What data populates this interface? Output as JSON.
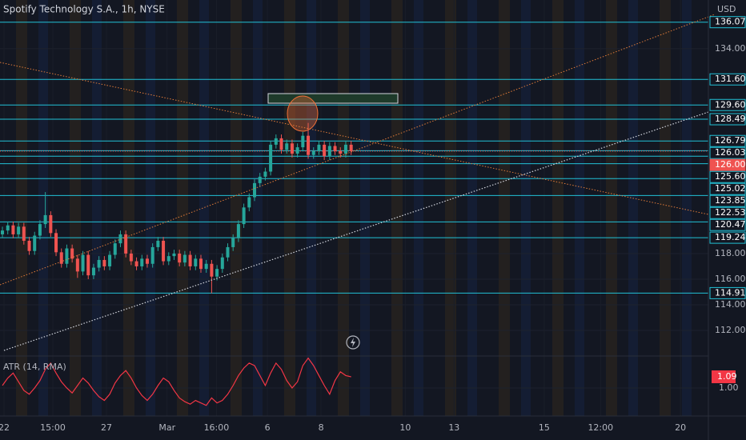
{
  "chart_data": {
    "type": "candlestick",
    "title": "Spotify Technology S.A., 1h, NYSE",
    "currency": "USD",
    "up_color": "#26a69a",
    "down_color": "#ef5350",
    "level_color": "#22c1d6",
    "ylim": [
      110,
      137.8
    ],
    "yticks": [
      {
        "value": 112,
        "label": "112.00"
      },
      {
        "value": 114,
        "label": "114.00"
      },
      {
        "value": 116,
        "label": "116.00"
      },
      {
        "value": 118,
        "label": "118.00"
      },
      {
        "value": 134,
        "label": "134.00"
      }
    ],
    "levels": [
      {
        "value": 136.07,
        "label": "136.07"
      },
      {
        "value": 131.6,
        "label": "131.60"
      },
      {
        "value": 129.6,
        "label": "129.60"
      },
      {
        "value": 128.49,
        "label": "128.49"
      },
      {
        "value": 126.79,
        "label": "126.79"
      },
      {
        "value": 126.03,
        "label": "126.03"
      },
      {
        "value": 125.6,
        "label": "125.60"
      },
      {
        "value": 125.02,
        "label": "125.02"
      },
      {
        "value": 123.85,
        "label": "123.85"
      },
      {
        "value": 122.53,
        "label": "122.53"
      },
      {
        "value": 120.47,
        "label": "120.47"
      },
      {
        "value": 119.24,
        "label": "119.24"
      },
      {
        "value": 114.91,
        "label": "114.91"
      }
    ],
    "last_price": {
      "value": 126,
      "label": "126.00"
    },
    "xlim": [
      -0.45,
      131.6
    ],
    "xticks": [
      {
        "value": 0.3,
        "label": "22"
      },
      {
        "value": 9.4,
        "label": "15:00"
      },
      {
        "value": 19.4,
        "label": "27"
      },
      {
        "value": 30.7,
        "label": "Mar"
      },
      {
        "value": 39.9,
        "label": "16:00"
      },
      {
        "value": 49.4,
        "label": "6"
      },
      {
        "value": 59.4,
        "label": "8"
      },
      {
        "value": 75.1,
        "label": "10"
      },
      {
        "value": 84.2,
        "label": "13"
      },
      {
        "value": 101.0,
        "label": "15"
      },
      {
        "value": 111.5,
        "label": "12:00"
      },
      {
        "value": 126.4,
        "label": "20"
      }
    ],
    "candles": [
      [
        119.5,
        120.1,
        119.2,
        119.8
      ],
      [
        119.8,
        120.5,
        119.5,
        120.2
      ],
      [
        120.2,
        120.5,
        119.2,
        119.5
      ],
      [
        119.5,
        120.4,
        119.2,
        120.1
      ],
      [
        120.1,
        120.4,
        118.7,
        119.0
      ],
      [
        119.0,
        119.3,
        117.9,
        118.2
      ],
      [
        118.2,
        119.7,
        117.9,
        119.4
      ],
      [
        119.4,
        120.6,
        119.1,
        120.3
      ],
      [
        120.3,
        122.8,
        120.0,
        121.0
      ],
      [
        121.0,
        121.3,
        119.3,
        119.6
      ],
      [
        119.6,
        119.9,
        117.8,
        118.1
      ],
      [
        118.1,
        118.4,
        116.9,
        117.2
      ],
      [
        117.2,
        118.7,
        116.9,
        118.4
      ],
      [
        118.4,
        118.7,
        117.3,
        117.6
      ],
      [
        117.6,
        117.9,
        116.1,
        116.6
      ],
      [
        116.6,
        118.2,
        116.3,
        117.9
      ],
      [
        117.9,
        118.2,
        116.0,
        116.3
      ],
      [
        116.3,
        117.2,
        116.0,
        116.9
      ],
      [
        116.9,
        117.8,
        116.6,
        117.5
      ],
      [
        117.5,
        117.8,
        116.7,
        117.0
      ],
      [
        117.0,
        118.2,
        116.7,
        117.9
      ],
      [
        117.9,
        119.1,
        117.6,
        118.8
      ],
      [
        118.8,
        119.8,
        118.5,
        119.5
      ],
      [
        119.5,
        119.8,
        117.7,
        118.0
      ],
      [
        118.0,
        118.3,
        117.1,
        117.4
      ],
      [
        117.4,
        117.7,
        116.7,
        117.0
      ],
      [
        117.0,
        117.9,
        116.7,
        117.6
      ],
      [
        117.6,
        117.9,
        116.9,
        117.2
      ],
      [
        117.2,
        118.8,
        116.9,
        118.5
      ],
      [
        118.5,
        119.3,
        118.2,
        119.0
      ],
      [
        119.0,
        119.3,
        117.1,
        117.4
      ],
      [
        117.4,
        118.1,
        117.1,
        117.8
      ],
      [
        117.8,
        118.3,
        117.5,
        118.0
      ],
      [
        118.0,
        118.3,
        117.0,
        117.3
      ],
      [
        117.3,
        118.2,
        117.0,
        117.9
      ],
      [
        117.9,
        118.2,
        116.7,
        117.0
      ],
      [
        117.0,
        117.9,
        116.7,
        117.6
      ],
      [
        117.6,
        117.9,
        116.5,
        116.8
      ],
      [
        116.8,
        117.5,
        116.5,
        117.2
      ],
      [
        117.2,
        117.5,
        114.9,
        116.2
      ],
      [
        116.2,
        117.1,
        115.9,
        116.8
      ],
      [
        116.8,
        118.0,
        116.5,
        117.7
      ],
      [
        117.7,
        118.8,
        117.4,
        118.5
      ],
      [
        118.5,
        119.5,
        118.2,
        119.2
      ],
      [
        119.2,
        120.6,
        118.9,
        120.3
      ],
      [
        120.3,
        121.9,
        120.0,
        121.6
      ],
      [
        121.6,
        122.7,
        121.3,
        122.4
      ],
      [
        122.4,
        123.8,
        122.1,
        123.5
      ],
      [
        123.5,
        124.3,
        123.2,
        124.0
      ],
      [
        124.0,
        124.7,
        123.7,
        124.4
      ],
      [
        124.4,
        126.8,
        124.1,
        126.5
      ],
      [
        126.5,
        127.3,
        126.2,
        127.0
      ],
      [
        127.0,
        127.3,
        125.8,
        126.1
      ],
      [
        126.1,
        126.9,
        125.8,
        126.6
      ],
      [
        126.6,
        126.9,
        125.5,
        125.8
      ],
      [
        125.8,
        126.6,
        125.5,
        126.3
      ],
      [
        126.3,
        127.5,
        126.0,
        127.2
      ],
      [
        127.2,
        128.2,
        125.4,
        125.7
      ],
      [
        125.7,
        126.3,
        125.4,
        126.0
      ],
      [
        126.0,
        126.8,
        125.7,
        126.5
      ],
      [
        126.5,
        126.8,
        125.3,
        125.6
      ],
      [
        125.6,
        126.7,
        125.3,
        126.4
      ],
      [
        126.4,
        126.7,
        125.7,
        126.0
      ],
      [
        126.0,
        126.3,
        125.5,
        125.8
      ],
      [
        125.8,
        126.8,
        125.5,
        126.5
      ],
      [
        126.5,
        126.8,
        125.7,
        126.0
      ]
    ],
    "indicator": {
      "name": "ATR (14, RMA)",
      "color": "#f23645",
      "ylim": [
        0.775,
        1.257
      ],
      "yticks": [
        {
          "value": 1,
          "label": "1.00"
        }
      ],
      "values": [
        1.02,
        1.08,
        1.12,
        1.05,
        0.98,
        0.95,
        1.0,
        1.06,
        1.15,
        1.2,
        1.12,
        1.05,
        1.0,
        0.96,
        1.02,
        1.08,
        1.04,
        0.98,
        0.93,
        0.9,
        0.95,
        1.04,
        1.1,
        1.14,
        1.08,
        1.0,
        0.94,
        0.9,
        0.95,
        1.02,
        1.08,
        1.05,
        0.98,
        0.92,
        0.89,
        0.87,
        0.9,
        0.88,
        0.86,
        0.92,
        0.88,
        0.9,
        0.95,
        1.02,
        1.1,
        1.16,
        1.2,
        1.18,
        1.1,
        1.02,
        1.12,
        1.2,
        1.15,
        1.06,
        1.0,
        1.05,
        1.18,
        1.24,
        1.18,
        1.1,
        1.02,
        0.95,
        1.06,
        1.13,
        1.1,
        1.09
      ]
    }
  }
}
